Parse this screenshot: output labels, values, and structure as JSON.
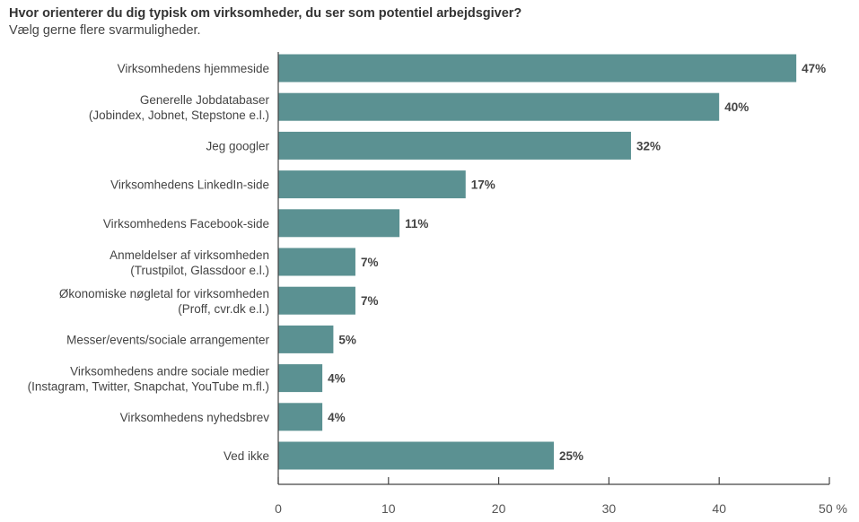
{
  "chart_data": {
    "type": "bar",
    "orientation": "horizontal",
    "title": "Hvor orienterer du dig typisk om virksomheder, du ser som potentiel arbejdsgiver?",
    "subtitle": "Vælg gerne flere svarmuligheder.",
    "categories": [
      [
        "Virksomhedens hjemmeside"
      ],
      [
        "Generelle Jobdatabaser",
        "(Jobindex, Jobnet, Stepstone e.l.)"
      ],
      [
        "Jeg googler"
      ],
      [
        "Virksomhedens LinkedIn-side"
      ],
      [
        "Virksomhedens Facebook-side"
      ],
      [
        "Anmeldelser af virksomheden",
        "(Trustpilot, Glassdoor e.l.)"
      ],
      [
        "Økonomiske nøgletal for virksomheden",
        "(Proff, cvr.dk e.l.)"
      ],
      [
        "Messer/events/sociale arrangementer"
      ],
      [
        "Virksomhedens andre sociale medier",
        "(Instagram, Twitter, Snapchat, YouTube m.fl.)"
      ],
      [
        "Virksomhedens nyhedsbrev"
      ],
      [
        "Ved ikke"
      ]
    ],
    "values": [
      47,
      40,
      32,
      17,
      11,
      7,
      7,
      5,
      4,
      4,
      25
    ],
    "data_labels": [
      "47%",
      "40%",
      "32%",
      "17%",
      "11%",
      "7%",
      "7%",
      "5%",
      "4%",
      "4%",
      "25%"
    ],
    "xlim": [
      0,
      50
    ],
    "x_ticks": [
      "0",
      "10",
      "20",
      "30",
      "40",
      "50 %"
    ],
    "grid": false,
    "bar_color": "#5b9192"
  }
}
